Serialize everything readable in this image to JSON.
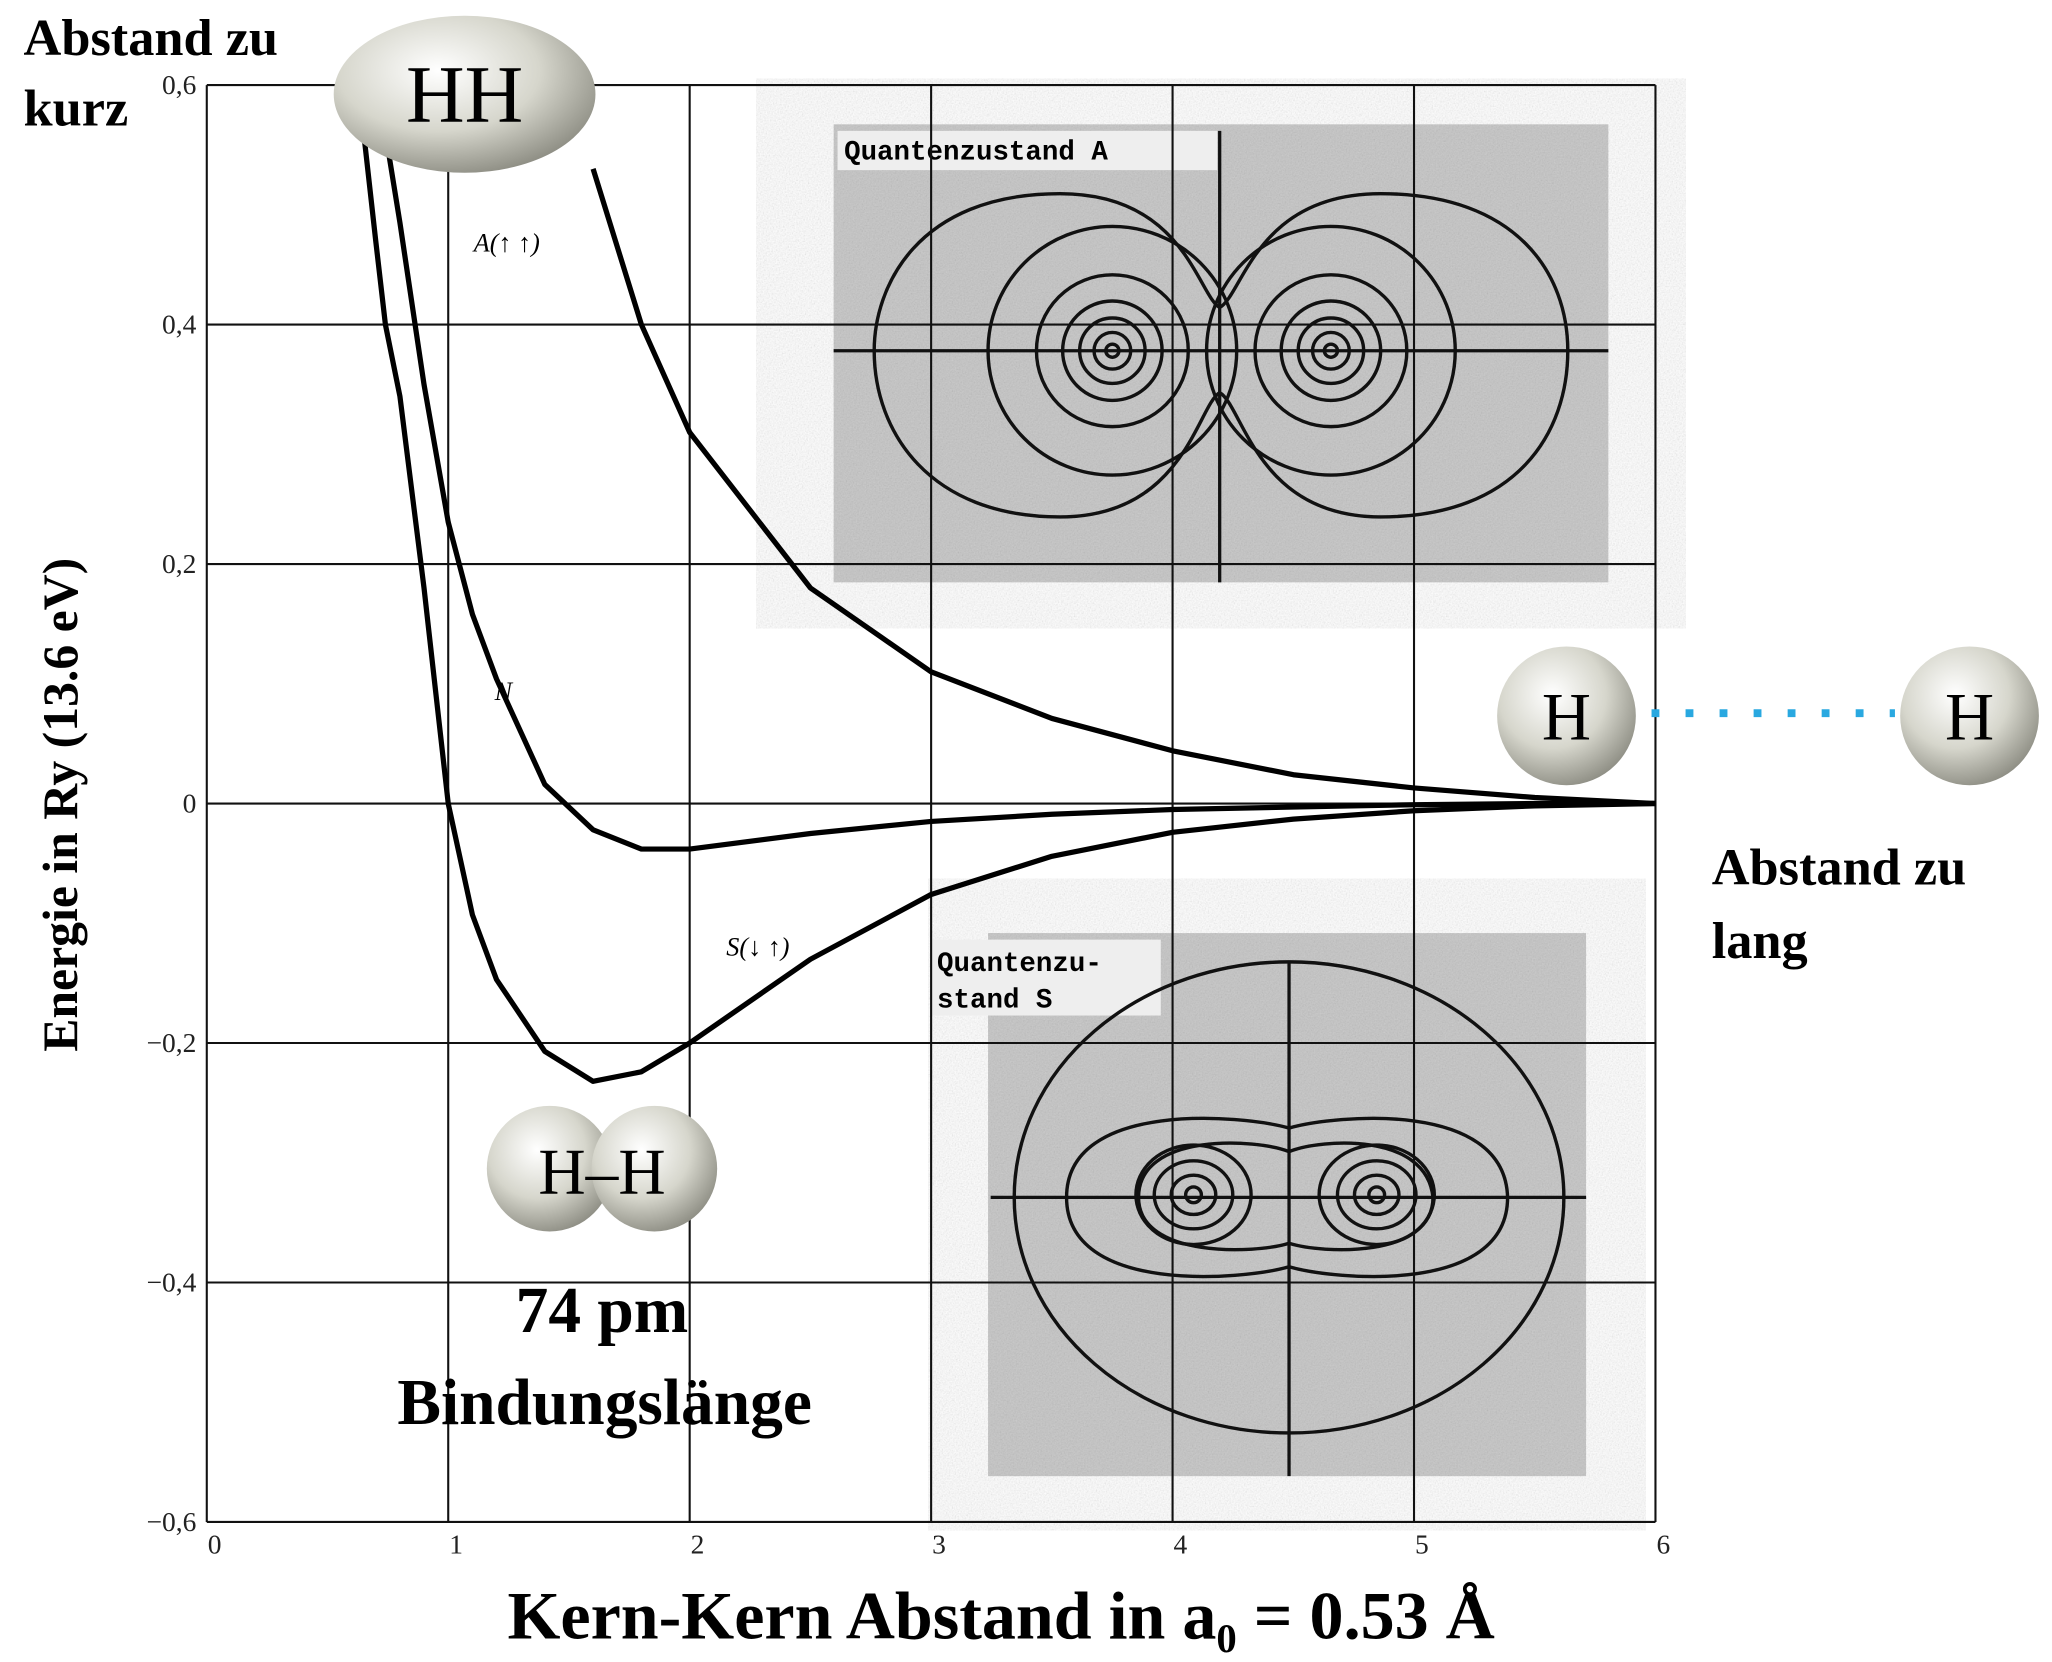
{
  "chart_data": {
    "type": "line",
    "x_label": "Kern-Kern Abstand in a₀ = 0.53 Å",
    "y_label": "Energie in Ry (13.6 eV)",
    "x": [
      0.65,
      0.7,
      0.74,
      0.8,
      0.9,
      1.0,
      1.1,
      1.2,
      1.4,
      1.6,
      1.8,
      2.0,
      2.5,
      3,
      3.5,
      4,
      4.5,
      5,
      5.5,
      6
    ],
    "series": [
      {
        "name": "S(↓ ↑)",
        "color": "#000000",
        "values": [
          0.56,
          0.47,
          0.4,
          0.34,
          0.18,
          0,
          -0.093,
          -0.147,
          -0.207,
          -0.232,
          -0.224,
          -0.2,
          -0.13,
          -0.076,
          -0.044,
          -0.024,
          -0.013,
          -0.006,
          -0.002,
          0
        ]
      },
      {
        "name": "N",
        "color": "#000000",
        "values": [
          null,
          null,
          0.56,
          0.485,
          0.35,
          0.235,
          0.158,
          0.104,
          0.016,
          -0.022,
          -0.038,
          -0.038,
          -0.025,
          -0.015,
          -0.009,
          -0.005,
          -0.003,
          -0.001,
          0,
          0
        ]
      },
      {
        "name": "A(↑ ↑)",
        "color": "#000000",
        "values": [
          null,
          null,
          null,
          null,
          null,
          null,
          null,
          null,
          null,
          0.53,
          0.4,
          0.31,
          0.18,
          0.11,
          0.071,
          0.044,
          0.024,
          0.013,
          0.005,
          0
        ]
      }
    ],
    "xlim": [
      0,
      6
    ],
    "ylim": [
      -0.6,
      0.6
    ],
    "xticks": [
      0,
      1,
      2,
      3,
      4,
      5,
      6
    ],
    "yticks": [
      {
        "value": -0.6,
        "label": "−0,6"
      },
      {
        "value": -0.4,
        "label": "−0,4"
      },
      {
        "value": -0.2,
        "label": "−0,2"
      },
      0,
      {
        "value": 0.2,
        "label": "0,2"
      },
      {
        "value": 0.4,
        "label": "0,4"
      },
      {
        "value": 0.6,
        "label": "0,6"
      }
    ],
    "grid": true,
    "annotations": {
      "too_short": [
        "Abstand zu",
        "kurz"
      ],
      "molecule_short": "HH",
      "atom_left": "H",
      "atom_right": "H",
      "too_long": [
        "Abstand zu",
        "lang"
      ],
      "molecule_bond": "H–H",
      "bond_length": [
        "74 pm",
        "Bindungslänge"
      ],
      "state_a": "Quantenzustand A",
      "state_s": [
        "Quantenzu-",
        "stand S"
      ]
    }
  }
}
